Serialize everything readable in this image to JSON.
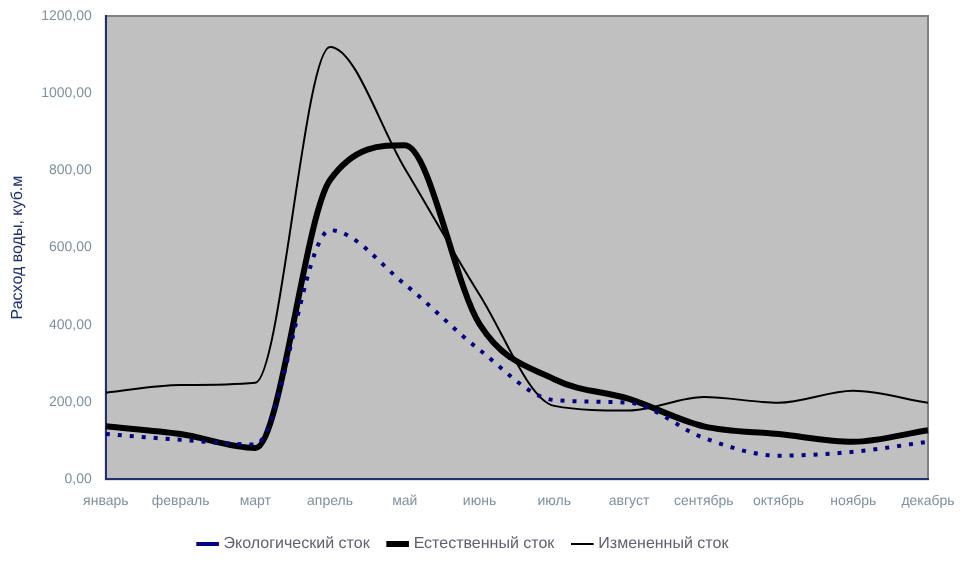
{
  "chart_data": {
    "type": "line",
    "ylabel": "Расход воды, куб.м",
    "categories": [
      "январь",
      "февраль",
      "март",
      "апрель",
      "май",
      "июнь",
      "июль",
      "август",
      "сентябрь",
      "октябрь",
      "ноябрь",
      "декабрь"
    ],
    "series": [
      {
        "name": "Экологический сток",
        "color": "#000080",
        "line_style": "dotted",
        "values": [
          117,
          102,
          90,
          645,
          505,
          335,
          205,
          198,
          107,
          61,
          71,
          97
        ]
      },
      {
        "name": "Естественный сток",
        "color": "#000000",
        "line_style": "solid",
        "values": [
          137,
          117,
          81,
          775,
          865,
          402,
          259,
          208,
          137,
          117,
          97,
          127
        ]
      },
      {
        "name": "Измененный сток",
        "color": "#000000",
        "line_style": "solid",
        "values": [
          224,
          244,
          250,
          1120,
          805,
          478,
          190,
          178,
          213,
          198,
          229,
          198
        ]
      }
    ],
    "ylim": [
      0,
      1200
    ],
    "yticks": [
      {
        "value": 0,
        "label": "0,00"
      },
      {
        "value": 200,
        "label": "200,00"
      },
      {
        "value": 400,
        "label": "400,00"
      },
      {
        "value": 600,
        "label": "600,00"
      },
      {
        "value": 800,
        "label": "800,00"
      },
      {
        "value": 1000,
        "label": "1000,00"
      },
      {
        "value": 1200,
        "label": "1200,00"
      }
    ],
    "grid": false,
    "legend": "bottom",
    "marker": "none"
  }
}
